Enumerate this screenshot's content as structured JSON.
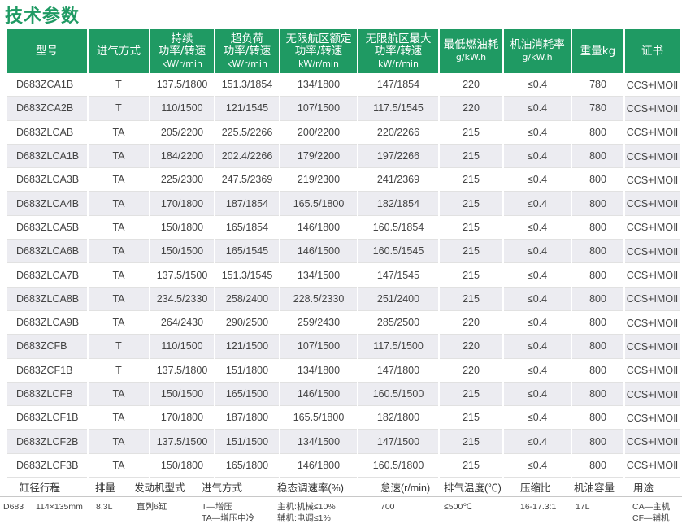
{
  "title": "技术参数",
  "table": {
    "headers": [
      {
        "lines": [
          "型号"
        ]
      },
      {
        "lines": [
          "进气方式"
        ]
      },
      {
        "lines": [
          "持续",
          "功率/转速",
          "kW/r/min"
        ]
      },
      {
        "lines": [
          "超负荷",
          "功率/转速",
          "kW/r/min"
        ]
      },
      {
        "lines": [
          "无限航区额定",
          "功率/转速",
          "kW/r/min"
        ]
      },
      {
        "lines": [
          "无限航区最大",
          "功率/转速",
          "kW/r/min"
        ]
      },
      {
        "lines": [
          "最低燃油耗",
          "g/kW.h"
        ]
      },
      {
        "lines": [
          "机油消耗率",
          "g/kW.h"
        ]
      },
      {
        "lines": [
          "重量kg"
        ]
      },
      {
        "lines": [
          "证书"
        ]
      }
    ],
    "rows": [
      [
        "D683ZCA1B",
        "T",
        "137.5/1800",
        "151.3/1854",
        "134/1800",
        "147/1854",
        "220",
        "≤0.4",
        "780",
        "CCS+IMOⅡ"
      ],
      [
        "D683ZCA2B",
        "T",
        "110/1500",
        "121/1545",
        "107/1500",
        "117.5/1545",
        "220",
        "≤0.4",
        "780",
        "CCS+IMOⅡ"
      ],
      [
        "D683ZLCAB",
        "TA",
        "205/2200",
        "225.5/2266",
        "200/2200",
        "220/2266",
        "215",
        "≤0.4",
        "800",
        "CCS+IMOⅡ"
      ],
      [
        "D683ZLCA1B",
        "TA",
        "184/2200",
        "202.4/2266",
        "179/2200",
        "197/2266",
        "215",
        "≤0.4",
        "800",
        "CCS+IMOⅡ"
      ],
      [
        "D683ZLCA3B",
        "TA",
        "225/2300",
        "247.5/2369",
        "219/2300",
        "241/2369",
        "215",
        "≤0.4",
        "800",
        "CCS+IMOⅡ"
      ],
      [
        "D683ZLCA4B",
        "TA",
        "170/1800",
        "187/1854",
        "165.5/1800",
        "182/1854",
        "215",
        "≤0.4",
        "800",
        "CCS+IMOⅡ"
      ],
      [
        "D683ZLCA5B",
        "TA",
        "150/1800",
        "165/1854",
        "146/1800",
        "160.5/1854",
        "215",
        "≤0.4",
        "800",
        "CCS+IMOⅡ"
      ],
      [
        "D683ZLCA6B",
        "TA",
        "150/1500",
        "165/1545",
        "146/1500",
        "160.5/1545",
        "215",
        "≤0.4",
        "800",
        "CCS+IMOⅡ"
      ],
      [
        "D683ZLCA7B",
        "TA",
        "137.5/1500",
        "151.3/1545",
        "134/1500",
        "147/1545",
        "215",
        "≤0.4",
        "800",
        "CCS+IMOⅡ"
      ],
      [
        "D683ZLCA8B",
        "TA",
        "234.5/2330",
        "258/2400",
        "228.5/2330",
        "251/2400",
        "215",
        "≤0.4",
        "800",
        "CCS+IMOⅡ"
      ],
      [
        "D683ZLCA9B",
        "TA",
        "264/2430",
        "290/2500",
        "259/2430",
        "285/2500",
        "220",
        "≤0.4",
        "800",
        "CCS+IMOⅡ"
      ],
      [
        "D683ZCFB",
        "T",
        "110/1500",
        "121/1500",
        "107/1500",
        "117.5/1500",
        "220",
        "≤0.4",
        "800",
        "CCS+IMOⅡ"
      ],
      [
        "D683ZCF1B",
        "T",
        "137.5/1800",
        "151/1800",
        "134/1800",
        "147/1800",
        "220",
        "≤0.4",
        "800",
        "CCS+IMOⅡ"
      ],
      [
        "D683ZLCFB",
        "TA",
        "150/1500",
        "165/1500",
        "146/1500",
        "160.5/1500",
        "215",
        "≤0.4",
        "800",
        "CCS+IMOⅡ"
      ],
      [
        "D683ZLCF1B",
        "TA",
        "170/1800",
        "187/1800",
        "165.5/1800",
        "182/1800",
        "215",
        "≤0.4",
        "800",
        "CCS+IMOⅡ"
      ],
      [
        "D683ZLCF2B",
        "TA",
        "137.5/1500",
        "151/1500",
        "134/1500",
        "147/1500",
        "215",
        "≤0.4",
        "800",
        "CCS+IMOⅡ"
      ],
      [
        "D683ZLCF3B",
        "TA",
        "150/1800",
        "165/1800",
        "146/1800",
        "160.5/1800",
        "215",
        "≤0.4",
        "800",
        "CCS+IMOⅡ"
      ]
    ]
  },
  "general": {
    "headers": {
      "bore_stroke": "缸径行程",
      "displacement": "排量",
      "engine_type": "发动机型式",
      "intake": "进气方式",
      "governing": "稳态调速率(%)",
      "idle": "怠速(r/min)",
      "exhaust_temp": "排气温度(℃)",
      "compression": "压缩比",
      "oil_capacity": "机油容量",
      "usage": "用途"
    },
    "values": {
      "model": "D683",
      "bore_stroke": "114×135mm",
      "displacement": "8.3L",
      "engine_type": "直列6缸",
      "intake_1": "T—增压",
      "intake_2": "TA—增压中冷",
      "governing_1": "主机:机械≤10%",
      "governing_2": "辅机:电调≤1%",
      "idle": "700",
      "exhaust_temp": "≤500℃",
      "compression": "16-17.3:1",
      "oil_capacity": "17L",
      "usage_1": "CA—主机",
      "usage_2": "CF—辅机"
    }
  }
}
